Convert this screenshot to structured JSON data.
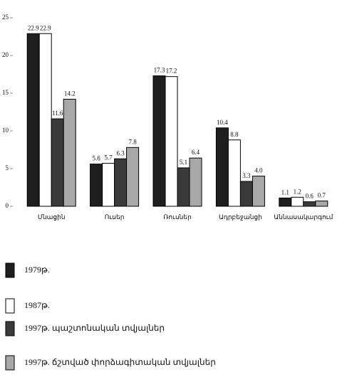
{
  "chart_data": {
    "type": "bar",
    "categories": [
      "Մնացին",
      "Ուսեր",
      "Ռուսներ",
      "Ադրբեջանցի",
      "Աննասակարգում"
    ],
    "series": [
      {
        "name": "1979թ.",
        "color": "#1e1e1e",
        "values": [
          22.9,
          5.6,
          17.3,
          10.4,
          1.1
        ]
      },
      {
        "name": "1987թ.",
        "color": "#ffffff",
        "values": [
          22.9,
          5.7,
          17.2,
          8.8,
          1.2
        ]
      },
      {
        "name": "1997թ. պաշտոնական տվյալներ",
        "color": "#3a3a3a",
        "values": [
          11.6,
          6.3,
          5.1,
          3.3,
          0.6
        ]
      },
      {
        "name": "1997թ. ճշտված փորձագիտական տվյալներ",
        "color": "#a8a8a8",
        "values": [
          14.2,
          7.8,
          6.4,
          4.0,
          0.7
        ],
        "value_labels": [
          "14.2",
          "7.8",
          "6.4",
          "4.0",
          "0.7"
        ]
      }
    ],
    "ylim": [
      0,
      25
    ],
    "yticks": [
      0,
      5,
      10,
      15,
      20,
      25
    ],
    "grid": false
  }
}
